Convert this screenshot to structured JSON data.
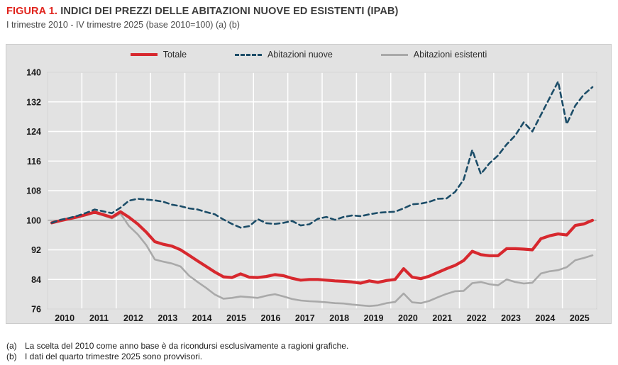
{
  "figure": {
    "label": "FIGURA 1.",
    "title": "INDICI DEI PREZZI DELLE ABITAZIONI NUOVE ED ESISTENTI (IPAB)",
    "subtitle": "I trimestre 2010 - IV trimestre 2025 (base 2010=100) (a) (b)"
  },
  "footnotes": [
    {
      "marker": "(a)",
      "text": "La scelta del 2010 come anno base è da ricondursi esclusivamente a ragioni grafiche."
    },
    {
      "marker": "(b)",
      "text": "I dati del quarto trimestre 2025 sono provvisori."
    }
  ],
  "colors": {
    "title_accent": "#e0231c",
    "plot_background": "#e2e2e2",
    "gridline": "#ffffff",
    "plot_border": "#c6c6c6",
    "reference_line": "#8f8f8f",
    "tick_label": "#1a1a1a"
  },
  "chart_data": {
    "type": "line",
    "title": "Indici dei prezzi delle abitazioni nuove ed esistenti (IPAB)",
    "x_unit": "trimestre",
    "x_range": "2010 Q1 - 2025 Q4",
    "years": [
      "2010",
      "2011",
      "2012",
      "2013",
      "2014",
      "2015",
      "2016",
      "2017",
      "2018",
      "2019",
      "2020",
      "2021",
      "2022",
      "2023",
      "2024",
      "2025"
    ],
    "quarters_per_year": 4,
    "ylim": [
      76,
      140
    ],
    "y_ticks": [
      76,
      84,
      92,
      100,
      108,
      116,
      124,
      132,
      140
    ],
    "reference_line": 100,
    "grid": true,
    "legend_position": "top",
    "series": [
      {
        "name": "Abitazioni esistenti",
        "color": "#a9a9a9",
        "dash": null,
        "width": 2.6,
        "values": [
          99.4,
          100.0,
          100.5,
          101.0,
          101.6,
          102.0,
          101.3,
          100.5,
          101.8,
          98.4,
          96.2,
          93.3,
          89.4,
          88.8,
          88.3,
          87.5,
          85.0,
          83.3,
          81.7,
          79.9,
          78.8,
          79.0,
          79.4,
          79.2,
          79.0,
          79.6,
          80.0,
          79.4,
          78.7,
          78.3,
          78.1,
          78.0,
          77.8,
          77.6,
          77.5,
          77.2,
          77.0,
          76.8,
          77.0,
          77.6,
          77.9,
          80.2,
          77.8,
          77.6,
          78.2,
          79.2,
          80.1,
          80.8,
          80.9,
          83.0,
          83.3,
          82.7,
          82.4,
          84.0,
          83.3,
          82.9,
          83.1,
          85.6,
          86.2,
          86.5,
          87.3,
          89.2,
          89.8,
          90.5
        ]
      },
      {
        "name": "Totale",
        "color": "#d7282e",
        "dash": null,
        "width": 4.2,
        "values": [
          99.3,
          99.9,
          100.4,
          100.9,
          101.5,
          102.2,
          101.5,
          100.8,
          102.3,
          100.8,
          99.0,
          96.8,
          94.2,
          93.5,
          93.0,
          92.0,
          90.5,
          89.0,
          87.5,
          86.0,
          84.7,
          84.5,
          85.5,
          84.6,
          84.5,
          84.8,
          85.3,
          85.0,
          84.3,
          83.8,
          84.0,
          84.0,
          83.8,
          83.6,
          83.5,
          83.3,
          83.0,
          83.6,
          83.2,
          83.7,
          84.0,
          86.9,
          84.6,
          84.2,
          84.9,
          85.9,
          86.9,
          87.8,
          89.1,
          91.6,
          90.7,
          90.4,
          90.4,
          92.3,
          92.3,
          92.2,
          92.0,
          95.0,
          95.8,
          96.3,
          96.0,
          98.6,
          99.0,
          100.0
        ]
      },
      {
        "name": "Abitazioni nuove",
        "color": "#1c4d68",
        "dash": "7 5",
        "width": 2.6,
        "values": [
          99.3,
          100.1,
          100.6,
          101.2,
          102.0,
          102.9,
          102.4,
          101.9,
          103.4,
          105.3,
          105.8,
          105.6,
          105.4,
          105.0,
          104.2,
          103.8,
          103.2,
          102.9,
          102.2,
          101.6,
          100.2,
          99.0,
          98.0,
          98.4,
          100.3,
          99.2,
          99.0,
          99.3,
          99.8,
          98.6,
          98.9,
          100.4,
          100.9,
          100.1,
          100.9,
          101.3,
          101.1,
          101.6,
          102.0,
          102.2,
          102.3,
          103.2,
          104.3,
          104.5,
          105.0,
          105.8,
          105.9,
          107.7,
          111.0,
          119.0,
          112.5,
          115.4,
          117.5,
          120.5,
          122.9,
          126.5,
          124.0,
          128.5,
          133.0,
          137.5,
          126.0,
          131.0,
          134.0,
          136.0
        ]
      }
    ],
    "legend_order": [
      1,
      2,
      0
    ]
  }
}
